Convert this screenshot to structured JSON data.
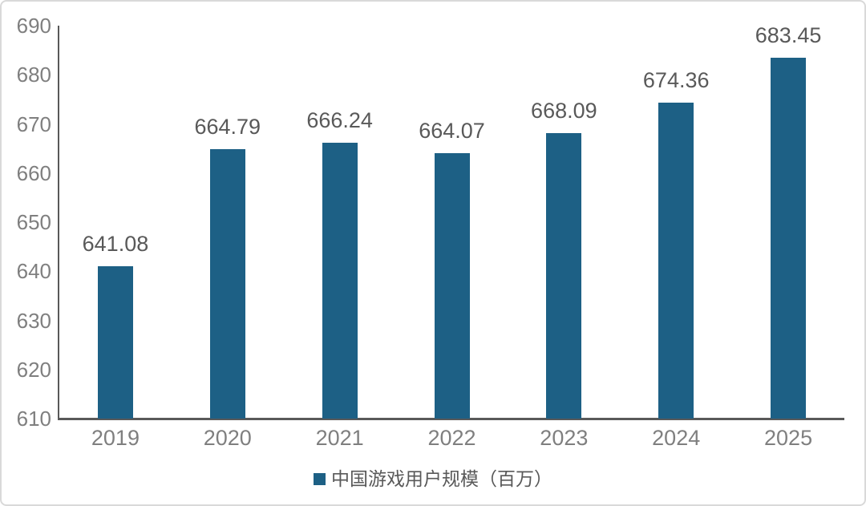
{
  "chart_data": {
    "type": "bar",
    "categories": [
      "2019",
      "2020",
      "2021",
      "2022",
      "2023",
      "2024",
      "2025"
    ],
    "series": [
      {
        "name": "中国游戏用户规模（百万）",
        "values": [
          641.08,
          664.79,
          666.24,
          664.07,
          668.09,
          674.36,
          683.45
        ]
      }
    ],
    "value_labels": [
      "641.08",
      "664.79",
      "666.24",
      "664.07",
      "668.09",
      "674.36",
      "683.45"
    ],
    "title": "",
    "xlabel": "",
    "ylabel": "",
    "ylim": [
      610,
      690
    ],
    "ytick_step": 10,
    "yticks": [
      "690",
      "680",
      "670",
      "660",
      "650",
      "640",
      "630",
      "620",
      "610"
    ],
    "grid": false,
    "legend_position": "bottom-center",
    "legend": {
      "label": "中国游戏用户规模（百万）"
    },
    "colors": {
      "bar": "#1d6085",
      "axis": "#595959",
      "tick_label": "#7f7f7f",
      "value_label": "#595959",
      "legend_text": "#595959",
      "border": "#d9d9d9",
      "background": "#ffffff"
    }
  }
}
